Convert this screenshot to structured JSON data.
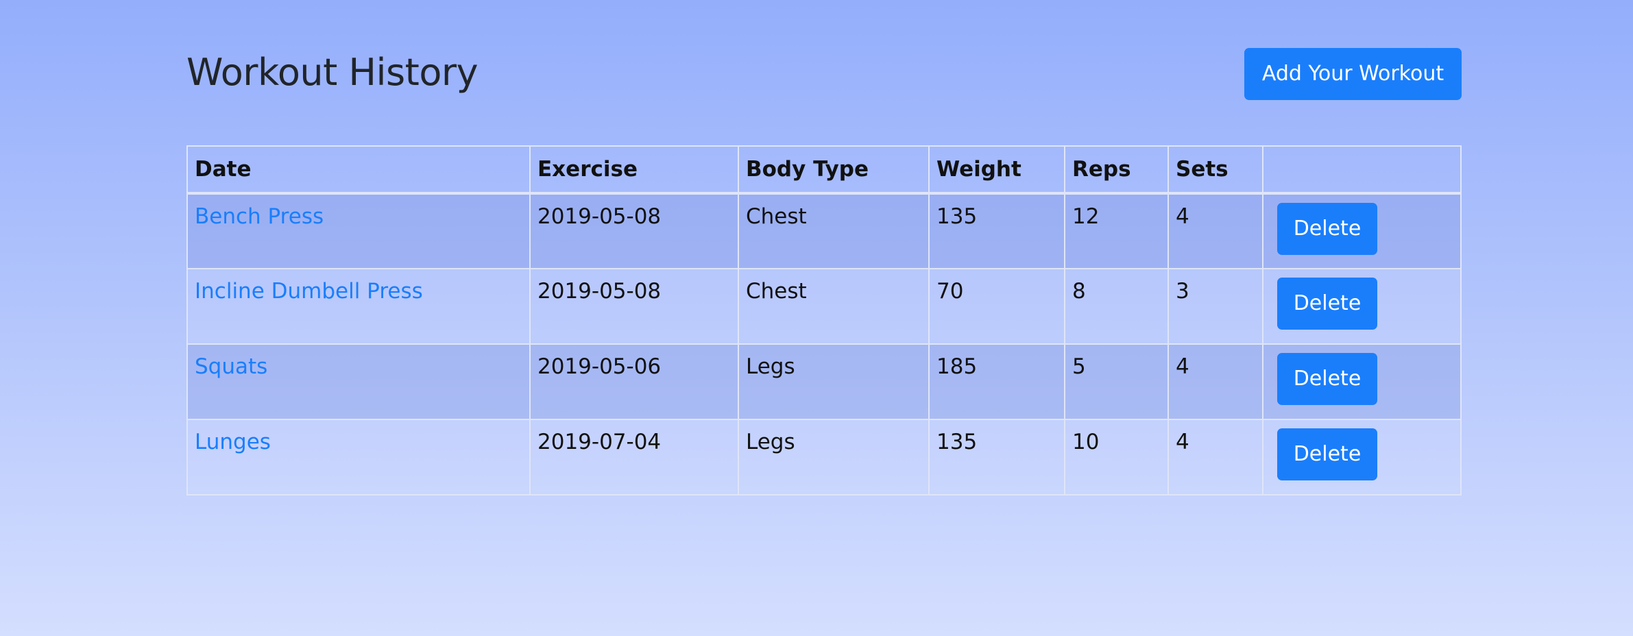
{
  "page": {
    "title": "Workout History",
    "add_button_label": "Add Your Workout"
  },
  "colors": {
    "accent": "#1a7efb",
    "link": "#1a7efb",
    "background_top": "#94aefc",
    "background_bottom": "#d4defe"
  },
  "table": {
    "headers": [
      "Date",
      "Exercise",
      "Body Type",
      "Weight",
      "Reps",
      "Sets",
      ""
    ],
    "rows": [
      {
        "name": "Bench Press",
        "date": "2019-05-08",
        "body_type": "Chest",
        "weight": "135",
        "reps": "12",
        "sets": "4",
        "action": "Delete"
      },
      {
        "name": "Incline Dumbell Press",
        "date": "2019-05-08",
        "body_type": "Chest",
        "weight": "70",
        "reps": "8",
        "sets": "3",
        "action": "Delete"
      },
      {
        "name": "Squats",
        "date": "2019-05-06",
        "body_type": "Legs",
        "weight": "185",
        "reps": "5",
        "sets": "4",
        "action": "Delete"
      },
      {
        "name": "Lunges",
        "date": "2019-07-04",
        "body_type": "Legs",
        "weight": "135",
        "reps": "10",
        "sets": "4",
        "action": "Delete"
      }
    ]
  }
}
